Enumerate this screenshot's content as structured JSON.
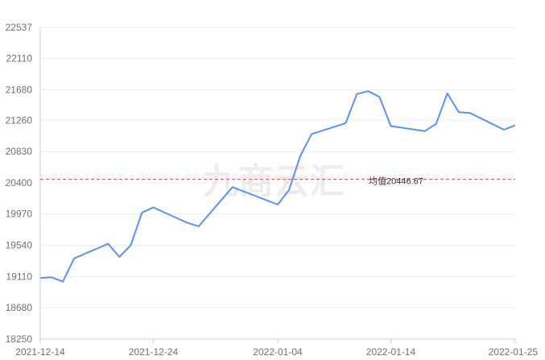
{
  "watermark": "九商云汇",
  "colors": {
    "line": "#5b8ff9",
    "average": "#e8545a",
    "grid": "#eeeeee",
    "axis": "#cccccc",
    "tick_text": "#6e7079"
  },
  "chart_data": {
    "type": "line",
    "title": "",
    "xlabel": "",
    "ylabel": "",
    "ylim": [
      18250,
      22537
    ],
    "y_ticks": [
      18250,
      18680,
      19110,
      19540,
      19970,
      20400,
      20830,
      21260,
      21680,
      22110,
      22537
    ],
    "x_ticks": [
      "2021-12-14",
      "2021-12-24",
      "2022-01-04",
      "2022-01-14",
      "2022-01-25"
    ],
    "average": {
      "value": 20446.67,
      "label": "均值20446.67"
    },
    "grid": "horizontal",
    "series": [
      {
        "points": [
          [
            "2021-12-14",
            19090
          ],
          [
            "2021-12-15",
            19100
          ],
          [
            "2021-12-16",
            19040
          ],
          [
            "2021-12-17",
            19360
          ],
          [
            "2021-12-20",
            19560
          ],
          [
            "2021-12-21",
            19380
          ],
          [
            "2021-12-22",
            19540
          ],
          [
            "2021-12-23",
            19990
          ],
          [
            "2021-12-24",
            20060
          ],
          [
            "2021-12-27",
            19850
          ],
          [
            "2021-12-28",
            19800
          ],
          [
            "2021-12-31",
            20340
          ],
          [
            "2022-01-04",
            20100
          ],
          [
            "2022-01-05",
            20300
          ],
          [
            "2022-01-06",
            20770
          ],
          [
            "2022-01-07",
            21070
          ],
          [
            "2022-01-10",
            21220
          ],
          [
            "2022-01-11",
            21620
          ],
          [
            "2022-01-12",
            21660
          ],
          [
            "2022-01-13",
            21580
          ],
          [
            "2022-01-14",
            21180
          ],
          [
            "2022-01-17",
            21110
          ],
          [
            "2022-01-18",
            21210
          ],
          [
            "2022-01-19",
            21630
          ],
          [
            "2022-01-20",
            21370
          ],
          [
            "2022-01-21",
            21360
          ],
          [
            "2022-01-24",
            21130
          ],
          [
            "2022-01-25",
            21190
          ]
        ]
      }
    ]
  }
}
